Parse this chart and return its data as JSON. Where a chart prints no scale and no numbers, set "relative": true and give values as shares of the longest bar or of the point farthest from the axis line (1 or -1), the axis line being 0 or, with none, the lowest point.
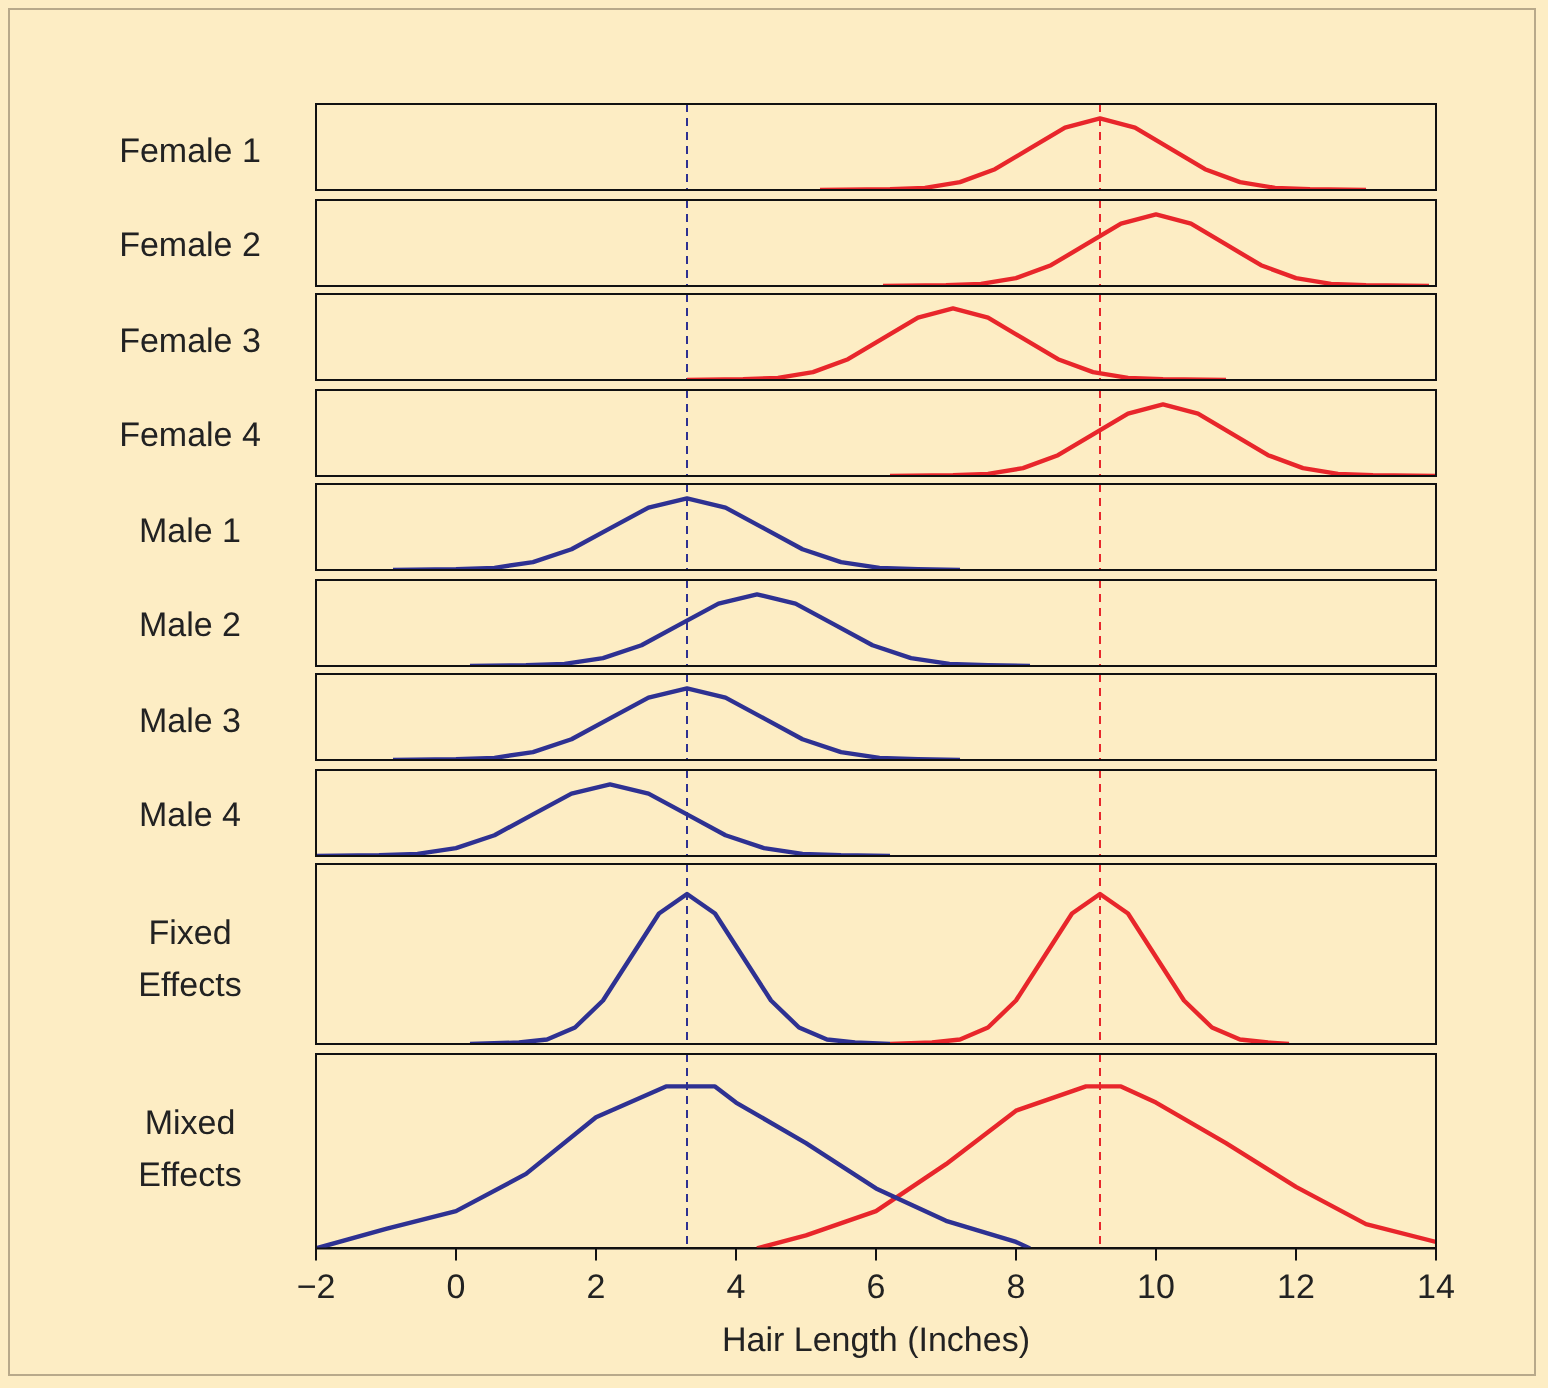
{
  "chart_data": [
    {
      "type": "line",
      "ylabel": "Female 1",
      "relative": true,
      "xlim": [
        -2,
        14
      ],
      "tick_labels": false,
      "series": [
        {
          "color": "#e8262b",
          "x": [
            5.2,
            6.2,
            6.7,
            7.2,
            7.7,
            8.2,
            8.7,
            9.2,
            9.7,
            10.2,
            10.7,
            11.2,
            11.7,
            12.2,
            13.0
          ],
          "values": [
            0,
            0.01,
            0.03,
            0.11,
            0.29,
            0.58,
            0.87,
            1,
            0.87,
            0.58,
            0.29,
            0.11,
            0.03,
            0.01,
            0
          ]
        }
      ],
      "ref_lines": [
        {
          "axis": "x",
          "value": 3.3,
          "color": "#2e3192",
          "line_style": "dashed"
        },
        {
          "axis": "x",
          "value": 9.2,
          "color": "#e8262b",
          "line_style": "dashed"
        }
      ]
    },
    {
      "type": "line",
      "ylabel": "Female 2",
      "relative": true,
      "xlim": [
        -2,
        14
      ],
      "tick_labels": false,
      "series": [
        {
          "color": "#e8262b",
          "x": [
            6.1,
            7.0,
            7.5,
            8.0,
            8.5,
            9.0,
            9.5,
            10.0,
            10.5,
            11.0,
            11.5,
            12.0,
            12.5,
            13.0,
            13.9
          ],
          "values": [
            0,
            0.01,
            0.03,
            0.11,
            0.29,
            0.58,
            0.87,
            1,
            0.87,
            0.58,
            0.29,
            0.11,
            0.03,
            0.01,
            0
          ]
        }
      ],
      "ref_lines": [
        {
          "axis": "x",
          "value": 3.3,
          "color": "#2e3192",
          "line_style": "dashed"
        },
        {
          "axis": "x",
          "value": 9.2,
          "color": "#e8262b",
          "line_style": "dashed"
        }
      ]
    },
    {
      "type": "line",
      "ylabel": "Female 3",
      "relative": true,
      "xlim": [
        -2,
        14
      ],
      "tick_labels": false,
      "series": [
        {
          "color": "#e8262b",
          "x": [
            3.3,
            4.1,
            4.6,
            5.1,
            5.6,
            6.1,
            6.6,
            7.1,
            7.6,
            8.1,
            8.6,
            9.1,
            9.6,
            10.1,
            11.0
          ],
          "values": [
            0,
            0.01,
            0.03,
            0.11,
            0.29,
            0.58,
            0.87,
            1,
            0.87,
            0.58,
            0.29,
            0.11,
            0.03,
            0.01,
            0
          ]
        }
      ],
      "ref_lines": [
        {
          "axis": "x",
          "value": 3.3,
          "color": "#2e3192",
          "line_style": "dashed"
        },
        {
          "axis": "x",
          "value": 9.2,
          "color": "#e8262b",
          "line_style": "dashed"
        }
      ]
    },
    {
      "type": "line",
      "ylabel": "Female 4",
      "relative": true,
      "xlim": [
        -2,
        14
      ],
      "tick_labels": false,
      "series": [
        {
          "color": "#e8262b",
          "x": [
            6.2,
            7.1,
            7.6,
            8.1,
            8.6,
            9.1,
            9.6,
            10.1,
            10.6,
            11.1,
            11.6,
            12.1,
            12.6,
            13.1,
            14.0
          ],
          "values": [
            0,
            0.01,
            0.03,
            0.11,
            0.29,
            0.58,
            0.87,
            1,
            0.87,
            0.58,
            0.29,
            0.11,
            0.03,
            0.01,
            0
          ]
        }
      ],
      "ref_lines": [
        {
          "axis": "x",
          "value": 3.3,
          "color": "#2e3192",
          "line_style": "dashed"
        },
        {
          "axis": "x",
          "value": 9.2,
          "color": "#e8262b",
          "line_style": "dashed"
        }
      ]
    },
    {
      "type": "line",
      "ylabel": "Male 1",
      "relative": true,
      "xlim": [
        -2,
        14
      ],
      "tick_labels": false,
      "series": [
        {
          "color": "#2e3192",
          "x": [
            -0.9,
            0.0,
            0.55,
            1.1,
            1.65,
            2.2,
            2.75,
            3.3,
            3.85,
            4.4,
            4.95,
            5.5,
            6.05,
            6.6,
            7.2
          ],
          "values": [
            0,
            0.01,
            0.03,
            0.11,
            0.29,
            0.58,
            0.87,
            1,
            0.87,
            0.58,
            0.29,
            0.11,
            0.03,
            0.01,
            0
          ]
        }
      ],
      "ref_lines": [
        {
          "axis": "x",
          "value": 3.3,
          "color": "#2e3192",
          "line_style": "dashed"
        },
        {
          "axis": "x",
          "value": 9.2,
          "color": "#e8262b",
          "line_style": "dashed"
        }
      ]
    },
    {
      "type": "line",
      "ylabel": "Male 2",
      "relative": true,
      "xlim": [
        -2,
        14
      ],
      "tick_labels": false,
      "series": [
        {
          "color": "#2e3192",
          "x": [
            0.2,
            1.0,
            1.55,
            2.1,
            2.65,
            3.2,
            3.75,
            4.3,
            4.85,
            5.4,
            5.95,
            6.5,
            7.05,
            7.6,
            8.2
          ],
          "values": [
            0,
            0.01,
            0.03,
            0.11,
            0.29,
            0.58,
            0.87,
            1,
            0.87,
            0.58,
            0.29,
            0.11,
            0.03,
            0.01,
            0
          ]
        }
      ],
      "ref_lines": [
        {
          "axis": "x",
          "value": 3.3,
          "color": "#2e3192",
          "line_style": "dashed"
        },
        {
          "axis": "x",
          "value": 9.2,
          "color": "#e8262b",
          "line_style": "dashed"
        }
      ]
    },
    {
      "type": "line",
      "ylabel": "Male 3",
      "relative": true,
      "xlim": [
        -2,
        14
      ],
      "tick_labels": false,
      "series": [
        {
          "color": "#2e3192",
          "x": [
            -0.9,
            0.0,
            0.55,
            1.1,
            1.65,
            2.2,
            2.75,
            3.3,
            3.85,
            4.4,
            4.95,
            5.5,
            6.05,
            6.6,
            7.2
          ],
          "values": [
            0,
            0.01,
            0.03,
            0.11,
            0.29,
            0.58,
            0.87,
            1,
            0.87,
            0.58,
            0.29,
            0.11,
            0.03,
            0.01,
            0
          ]
        }
      ],
      "ref_lines": [
        {
          "axis": "x",
          "value": 3.3,
          "color": "#2e3192",
          "line_style": "dashed"
        },
        {
          "axis": "x",
          "value": 9.2,
          "color": "#e8262b",
          "line_style": "dashed"
        }
      ]
    },
    {
      "type": "line",
      "ylabel": "Male 4",
      "relative": true,
      "xlim": [
        -2,
        14
      ],
      "tick_labels": false,
      "series": [
        {
          "color": "#2e3192",
          "x": [
            -2.0,
            -1.1,
            -0.55,
            0.0,
            0.55,
            1.1,
            1.65,
            2.2,
            2.75,
            3.3,
            3.85,
            4.4,
            4.95,
            5.5,
            6.2
          ],
          "values": [
            0,
            0.01,
            0.03,
            0.11,
            0.29,
            0.58,
            0.87,
            1,
            0.87,
            0.58,
            0.29,
            0.11,
            0.03,
            0.01,
            0
          ]
        }
      ],
      "ref_lines": [
        {
          "axis": "x",
          "value": 3.3,
          "color": "#2e3192",
          "line_style": "dashed"
        },
        {
          "axis": "x",
          "value": 9.2,
          "color": "#e8262b",
          "line_style": "dashed"
        }
      ]
    },
    {
      "type": "line",
      "ylabel": "Fixed Effects",
      "relative": true,
      "xlim": [
        -2,
        14
      ],
      "tick_labels": false,
      "series": [
        {
          "color": "#2e3192",
          "x": [
            0.2,
            0.9,
            1.3,
            1.7,
            2.1,
            2.5,
            2.9,
            3.3,
            3.7,
            4.1,
            4.5,
            4.9,
            5.3,
            5.7,
            6.2
          ],
          "values": [
            0,
            0.01,
            0.03,
            0.11,
            0.29,
            0.58,
            0.87,
            1,
            0.87,
            0.58,
            0.29,
            0.11,
            0.03,
            0.01,
            0
          ]
        },
        {
          "color": "#e8262b",
          "x": [
            6.2,
            6.8,
            7.2,
            7.6,
            8.0,
            8.4,
            8.8,
            9.2,
            9.6,
            10.0,
            10.4,
            10.8,
            11.2,
            11.6,
            11.9
          ],
          "values": [
            0,
            0.01,
            0.03,
            0.11,
            0.29,
            0.58,
            0.87,
            1,
            0.87,
            0.58,
            0.29,
            0.11,
            0.03,
            0.01,
            0
          ]
        }
      ],
      "ref_lines": [
        {
          "axis": "x",
          "value": 3.3,
          "color": "#2e3192",
          "line_style": "dashed"
        },
        {
          "axis": "x",
          "value": 9.2,
          "color": "#e8262b",
          "line_style": "dashed"
        }
      ]
    },
    {
      "type": "line",
      "ylabel": "Mixed Effects",
      "xlabel": "Hair Length (Inches)",
      "relative": true,
      "xlim": [
        -2,
        14
      ],
      "tick_labels": "x",
      "xticks": [
        {
          "value": -2,
          "label": "−2"
        },
        0,
        2,
        4,
        6,
        8,
        10,
        12,
        14
      ],
      "series": [
        {
          "color": "#2e3192",
          "x": [
            -2,
            -1,
            0,
            1,
            2,
            3,
            3.3,
            3.7,
            4,
            5,
            6,
            7,
            8,
            8.2
          ],
          "values": [
            0,
            0.12,
            0.23,
            0.46,
            0.81,
            1,
            1,
            1,
            0.9,
            0.65,
            0.37,
            0.17,
            0.04,
            0
          ]
        },
        {
          "color": "#e8262b",
          "x": [
            4.3,
            5,
            6,
            7,
            8,
            9,
            9.5,
            10,
            11,
            12,
            13,
            14
          ],
          "values": [
            0,
            0.08,
            0.23,
            0.52,
            0.85,
            1,
            1,
            0.9,
            0.65,
            0.38,
            0.15,
            0.04
          ]
        }
      ],
      "ref_lines": [
        {
          "axis": "x",
          "value": 3.3,
          "color": "#2e3192",
          "line_style": "dashed"
        },
        {
          "axis": "x",
          "value": 9.2,
          "color": "#e8262b",
          "line_style": "dashed"
        }
      ]
    }
  ]
}
